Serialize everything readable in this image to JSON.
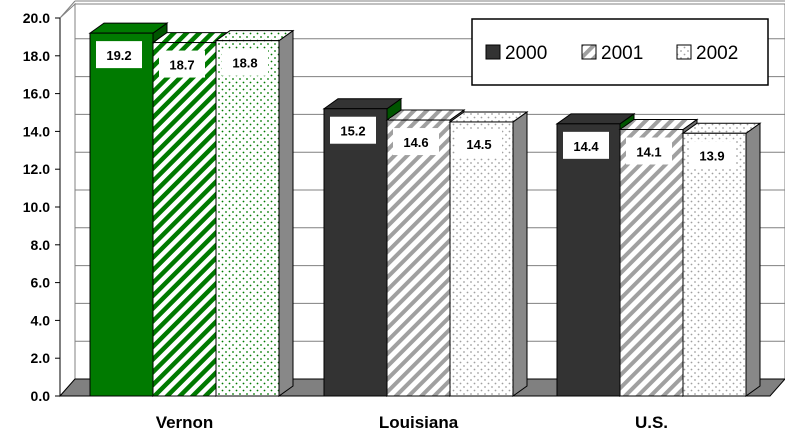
{
  "chart_data": {
    "type": "bar",
    "categories": [
      "Vernon",
      "Louisiana",
      "U.S."
    ],
    "series": [
      {
        "name": "2000",
        "values": [
          19.2,
          15.2,
          14.4
        ]
      },
      {
        "name": "2001",
        "values": [
          18.7,
          14.6,
          14.1
        ]
      },
      {
        "name": "2002",
        "values": [
          18.8,
          14.5,
          13.9
        ]
      }
    ],
    "data_labels": [
      [
        "19.2",
        "15.2",
        "14.4"
      ],
      [
        "18.7",
        "14.6",
        "14.1"
      ],
      [
        "18.8",
        "14.5",
        "13.9"
      ]
    ],
    "y_ticks": [
      "0.0",
      "2.0",
      "4.0",
      "6.0",
      "8.0",
      "10.0",
      "12.0",
      "14.0",
      "16.0",
      "18.0",
      "20.0"
    ],
    "ylim": [
      0,
      20
    ],
    "grid": true,
    "legend_position": "top-right",
    "three_d": true,
    "colors": {
      "highlight": "#007a00",
      "default": "#333333",
      "pattern_highlight": "#007a00",
      "pattern_default": "#999999",
      "floor": "#808080"
    }
  }
}
